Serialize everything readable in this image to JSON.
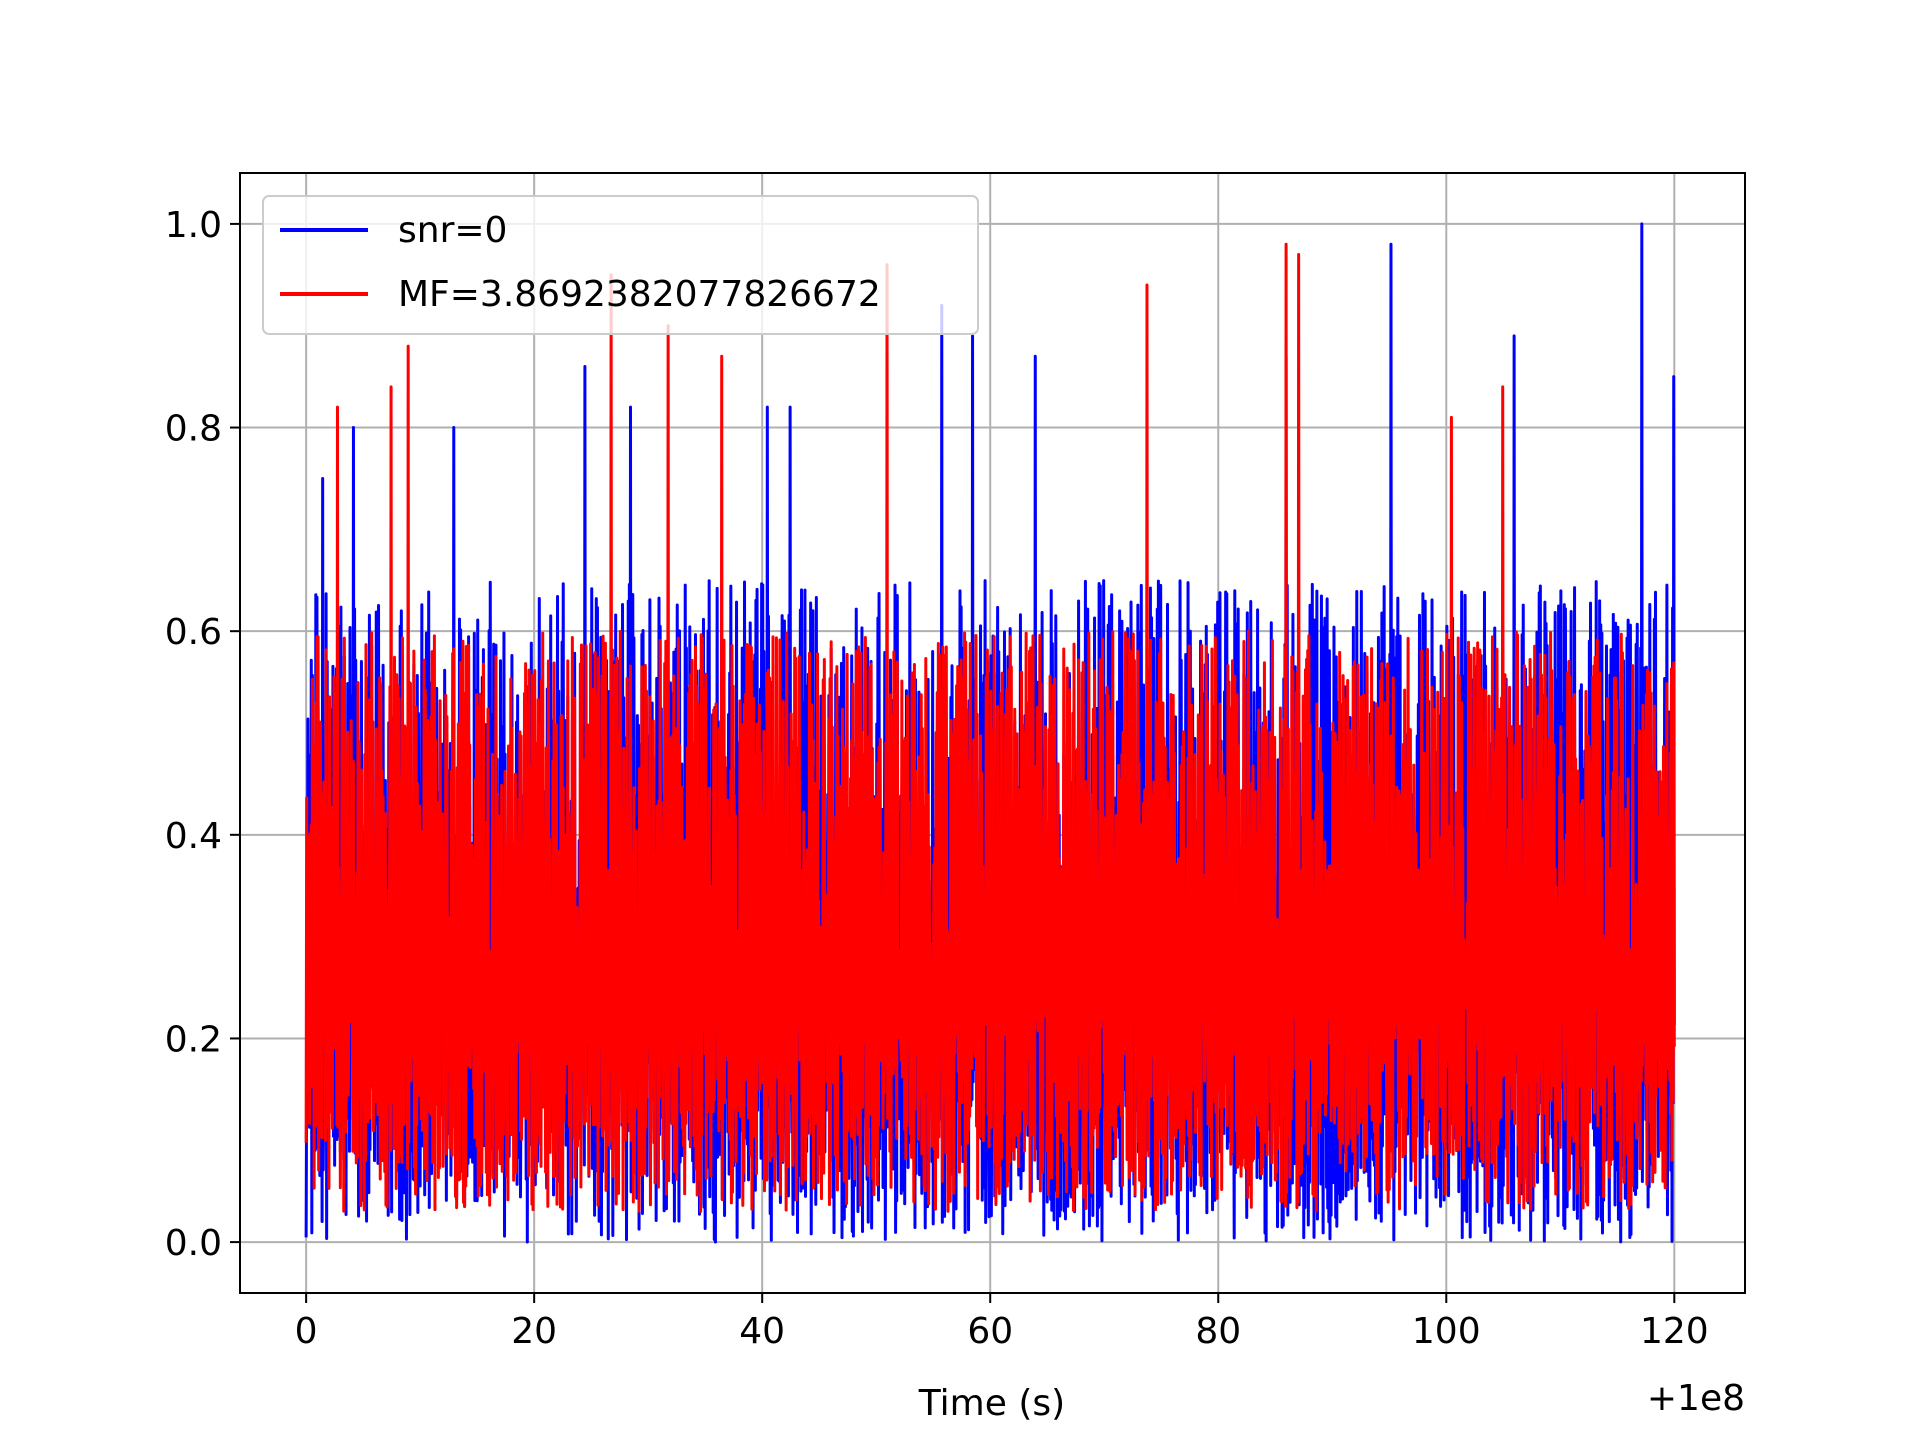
{
  "chart_data": {
    "type": "line",
    "title": "",
    "xlabel": "Time (s)",
    "ylabel": "",
    "x_offset_label": "+1e8",
    "xlim": [
      -5.8,
      126.2
    ],
    "ylim": [
      -0.05,
      1.05
    ],
    "x_ticks": [
      0,
      20,
      40,
      60,
      80,
      100,
      120
    ],
    "x_tick_labels": [
      "0",
      "20",
      "40",
      "60",
      "80",
      "100",
      "120"
    ],
    "y_ticks": [
      0.0,
      0.2,
      0.4,
      0.6,
      0.8,
      1.0
    ],
    "y_tick_labels": [
      "0.0",
      "0.2",
      "0.4",
      "0.6",
      "0.8",
      "1.0"
    ],
    "grid": true,
    "legend_position": "upper-left",
    "series": [
      {
        "name": "snr=0",
        "color": "#0000ff",
        "x_range": [
          0,
          120
        ],
        "baseline": 0.0,
        "typical_max": 0.65,
        "peaks": [
          {
            "x": 1.5,
            "y": 0.75
          },
          {
            "x": 4.2,
            "y": 0.8
          },
          {
            "x": 13.0,
            "y": 0.8
          },
          {
            "x": 24.5,
            "y": 0.86
          },
          {
            "x": 28.5,
            "y": 0.82
          },
          {
            "x": 40.5,
            "y": 0.82
          },
          {
            "x": 42.5,
            "y": 0.82
          },
          {
            "x": 55.8,
            "y": 0.92
          },
          {
            "x": 58.5,
            "y": 0.89
          },
          {
            "x": 64.0,
            "y": 0.87
          },
          {
            "x": 86.0,
            "y": 0.87
          },
          {
            "x": 95.2,
            "y": 0.98
          },
          {
            "x": 106.0,
            "y": 0.89
          },
          {
            "x": 117.2,
            "y": 1.0
          },
          {
            "x": 120.0,
            "y": 0.85
          }
        ]
      },
      {
        "name": "MF=3.8692382077826672",
        "color": "#ff0000",
        "x_range": [
          0,
          120
        ],
        "baseline": 0.03,
        "typical_max": 0.6,
        "peaks": [
          {
            "x": 2.7,
            "y": 0.82
          },
          {
            "x": 7.5,
            "y": 0.84
          },
          {
            "x": 9.0,
            "y": 0.88
          },
          {
            "x": 26.8,
            "y": 0.95
          },
          {
            "x": 31.8,
            "y": 0.9
          },
          {
            "x": 36.5,
            "y": 0.87
          },
          {
            "x": 51.0,
            "y": 0.96
          },
          {
            "x": 73.8,
            "y": 0.94
          },
          {
            "x": 85.9,
            "y": 0.98
          },
          {
            "x": 87.1,
            "y": 0.97
          },
          {
            "x": 100.5,
            "y": 0.81
          },
          {
            "x": 105.0,
            "y": 0.84
          }
        ]
      }
    ]
  }
}
